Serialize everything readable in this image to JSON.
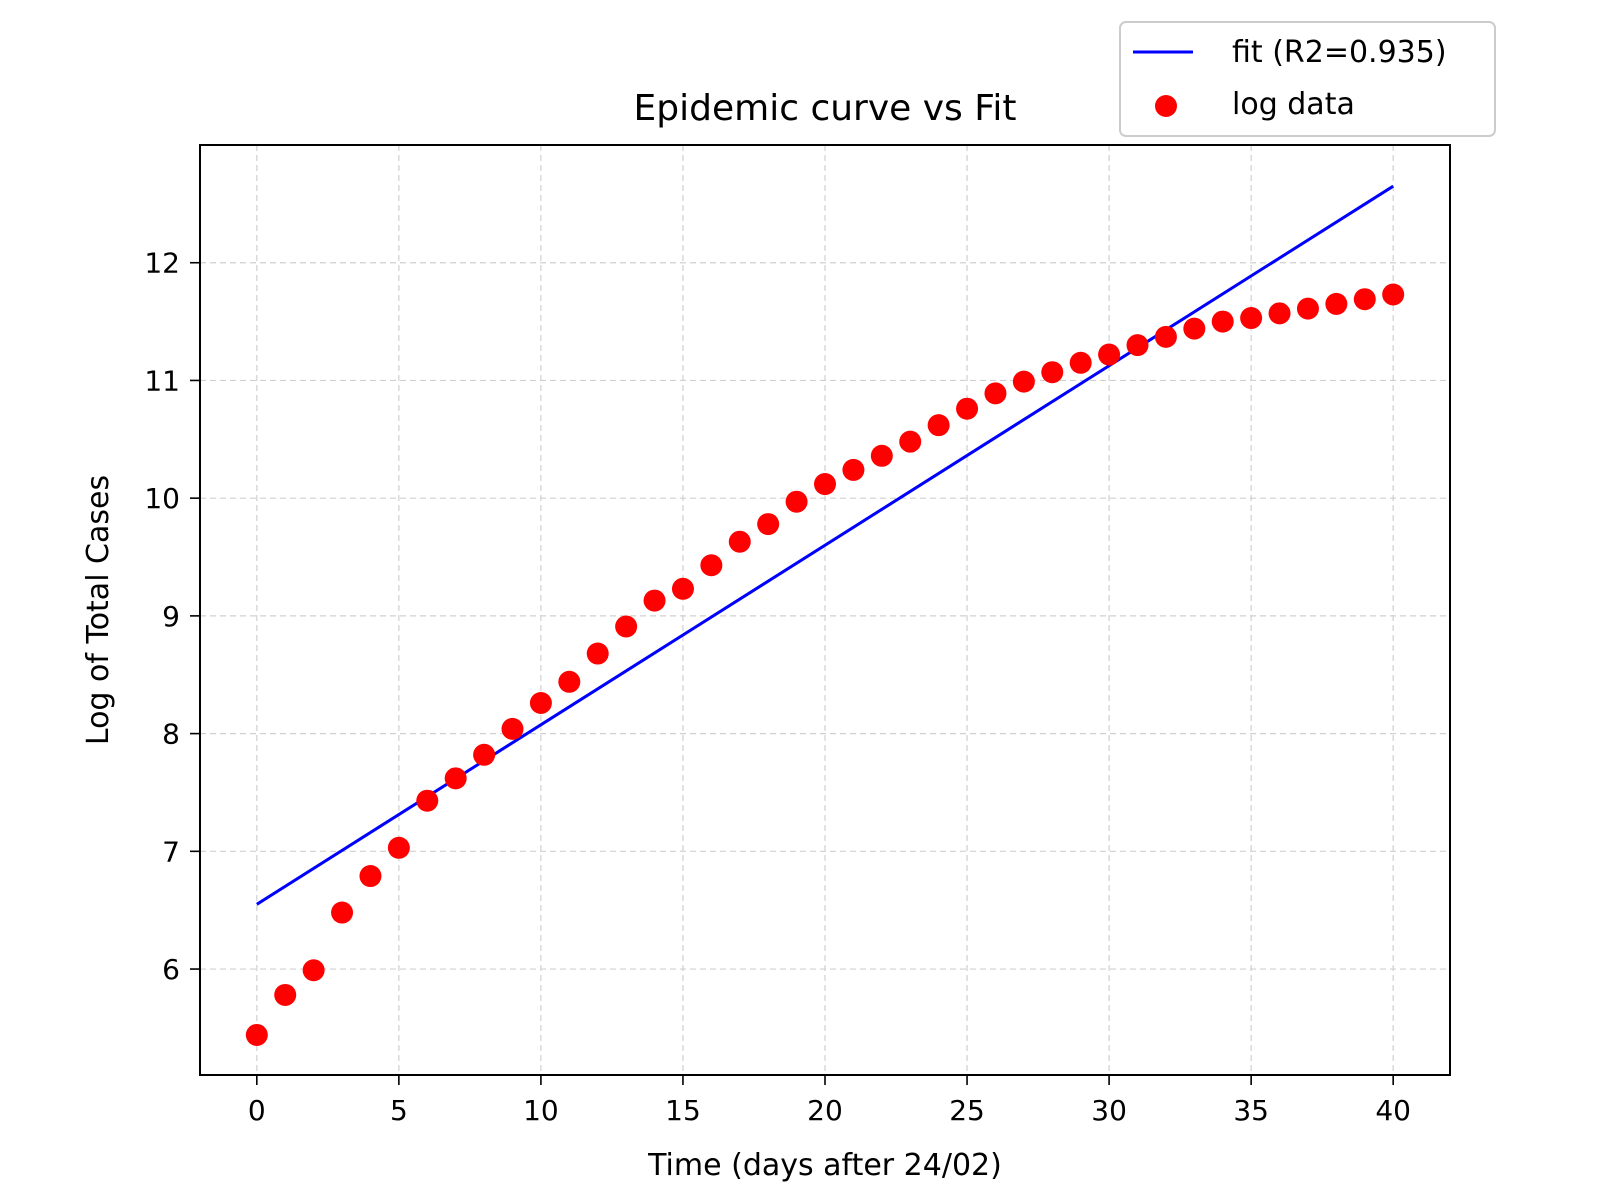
{
  "chart_data": {
    "type": "scatter",
    "title": "Epidemic curve vs Fit",
    "xlabel": "Time (days after 24/02)",
    "ylabel": "Log of Total Cases",
    "xlim": [
      -2,
      42
    ],
    "ylim": [
      5.1,
      13.0
    ],
    "xticks": [
      0,
      5,
      10,
      15,
      20,
      25,
      30,
      35,
      40
    ],
    "yticks": [
      6,
      7,
      8,
      9,
      10,
      11,
      12
    ],
    "grid": true,
    "legend_position": "top-right",
    "colors": {
      "fit": "#0000ff",
      "data": "#ff0000"
    },
    "series": [
      {
        "name": "fit (R2=0.935)",
        "kind": "line",
        "x": [
          0,
          40
        ],
        "values": [
          6.55,
          12.65
        ]
      },
      {
        "name": "log data",
        "kind": "scatter",
        "x": [
          0,
          1,
          2,
          3,
          4,
          5,
          6,
          7,
          8,
          9,
          10,
          11,
          12,
          13,
          14,
          15,
          16,
          17,
          18,
          19,
          20,
          21,
          22,
          23,
          24,
          25,
          26,
          27,
          28,
          29,
          30,
          31,
          32,
          33,
          34,
          35,
          36,
          37,
          38,
          39,
          40
        ],
        "values": [
          5.44,
          5.78,
          5.99,
          6.48,
          6.79,
          7.03,
          7.43,
          7.62,
          7.82,
          8.04,
          8.26,
          8.44,
          8.68,
          8.91,
          9.13,
          9.23,
          9.43,
          9.63,
          9.78,
          9.97,
          10.12,
          10.24,
          10.36,
          10.48,
          10.62,
          10.76,
          10.89,
          10.99,
          11.07,
          11.15,
          11.22,
          11.3,
          11.37,
          11.44,
          11.5,
          11.53,
          11.57,
          11.61,
          11.65,
          11.69,
          11.73
        ]
      }
    ]
  }
}
